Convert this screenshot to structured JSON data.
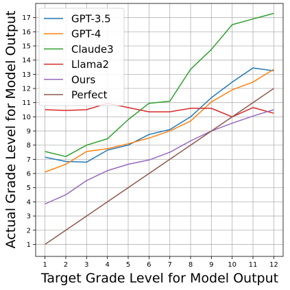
{
  "chart_data": {
    "type": "line",
    "xlabel": "Target Grade Level for Model Output",
    "ylabel": "Actual Grade Level for Model Output",
    "x": [
      1,
      2,
      3,
      4,
      5,
      6,
      7,
      8,
      9,
      10,
      11,
      12
    ],
    "xticks": [
      "1",
      "2",
      "3",
      "4",
      "5",
      "6",
      "7",
      "8",
      "9",
      "10",
      "11",
      "12"
    ],
    "yticks": [
      "1",
      "2",
      "3",
      "4",
      "5",
      "6",
      "7",
      "8",
      "9",
      "10",
      "11",
      "12",
      "13",
      "14",
      "15",
      "16",
      "17"
    ],
    "xlim": [
      0.55,
      12.45
    ],
    "ylim": [
      0.15,
      18.0
    ],
    "grid": true,
    "legend_position": "top-left",
    "series": [
      {
        "name": "GPT-3.5",
        "color": "#1f77b4",
        "values": [
          7.15,
          6.85,
          6.8,
          7.65,
          8.0,
          8.75,
          9.1,
          10.0,
          11.35,
          12.45,
          13.45,
          13.25
        ]
      },
      {
        "name": "GPT-4",
        "color": "#ff7f0e",
        "values": [
          6.1,
          6.65,
          7.55,
          7.75,
          8.1,
          8.5,
          9.0,
          9.7,
          11.05,
          11.9,
          12.45,
          13.35
        ]
      },
      {
        "name": "Claude3",
        "color": "#2ca02c",
        "values": [
          7.55,
          7.2,
          8.0,
          8.45,
          9.8,
          10.95,
          11.1,
          13.35,
          14.75,
          16.5,
          16.9,
          17.3
        ]
      },
      {
        "name": "Llama2",
        "color": "#d62728",
        "values": [
          10.5,
          10.45,
          10.5,
          10.95,
          10.65,
          10.35,
          10.35,
          10.6,
          10.6,
          10.0,
          10.65,
          10.25
        ]
      },
      {
        "name": "Ours",
        "color": "#9467bd",
        "values": [
          3.85,
          4.5,
          5.5,
          6.2,
          6.65,
          6.95,
          7.5,
          8.3,
          9.0,
          9.55,
          10.05,
          10.5
        ]
      },
      {
        "name": "Perfect",
        "color": "#8c564b",
        "values": [
          1,
          2,
          3,
          4,
          5,
          6,
          7,
          8,
          9,
          10,
          11,
          12
        ]
      }
    ]
  }
}
